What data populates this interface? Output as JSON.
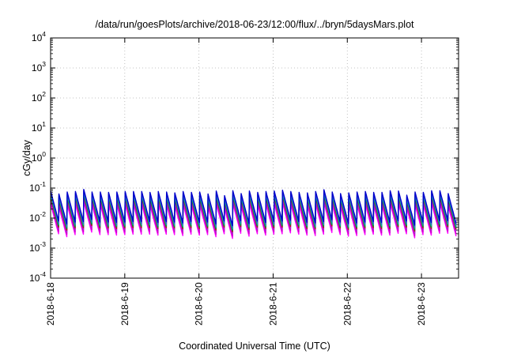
{
  "chart_data": {
    "type": "line",
    "title": "/data/run/goesPlots/archive/2018-06-23/12:00/flux/../bryn/5daysMars.plot",
    "xlabel": "Coordinated Universal Time (UTC)",
    "ylabel": "cGy/day",
    "y_scale": "log",
    "ylim": [
      0.0001,
      10000
    ],
    "y_ticks": [
      {
        "base": "10",
        "exp": "4"
      },
      {
        "base": "10",
        "exp": "3"
      },
      {
        "base": "10",
        "exp": "2"
      },
      {
        "base": "10",
        "exp": "1"
      },
      {
        "base": "10",
        "exp": "0"
      },
      {
        "base": "10",
        "exp": "-1"
      },
      {
        "base": "10",
        "exp": "-2"
      },
      {
        "base": "10",
        "exp": "-3"
      },
      {
        "base": "10",
        "exp": "-4"
      }
    ],
    "xlim": [
      "2018-06-18",
      "2018-06-23T12:00"
    ],
    "x_ticks": [
      "2018-6-18",
      "2018-6-19",
      "2018-6-20",
      "2018-6-21",
      "2018-6-22",
      "2018-6-23"
    ],
    "grid": true,
    "legend": "none",
    "pattern": {
      "period_hours": 2.68,
      "pulse_count": 49,
      "peak_cGy_per_day": 0.09,
      "decay_factor_per_cycle": 0.1
    },
    "series": [
      {
        "color": "#ff00ff",
        "values": [
          0.03,
          0.024,
          0.028,
          0.029,
          0.034,
          0.028,
          0.028,
          0.027,
          0.028,
          0.029,
          0.029,
          0.029,
          0.027,
          0.029,
          0.028,
          0.026,
          0.029,
          0.027,
          0.028,
          0.024,
          0.03,
          0.021,
          0.031,
          0.025,
          0.03,
          0.027,
          0.029,
          0.03,
          0.032,
          0.029,
          0.027,
          0.026,
          0.029,
          0.033,
          0.028,
          0.025,
          0.026,
          0.028,
          0.029,
          0.027,
          0.027,
          0.031,
          0.03,
          0.022,
          0.028,
          0.027,
          0.031,
          0.031,
          0.025
        ]
      },
      {
        "color": "#cc00cc",
        "values": [
          0.036,
          0.029,
          0.034,
          0.035,
          0.041,
          0.034,
          0.033,
          0.033,
          0.034,
          0.035,
          0.035,
          0.035,
          0.032,
          0.035,
          0.034,
          0.031,
          0.035,
          0.032,
          0.034,
          0.029,
          0.036,
          0.025,
          0.037,
          0.03,
          0.036,
          0.032,
          0.035,
          0.036,
          0.038,
          0.035,
          0.032,
          0.031,
          0.035,
          0.04,
          0.034,
          0.03,
          0.031,
          0.034,
          0.035,
          0.032,
          0.032,
          0.037,
          0.036,
          0.026,
          0.034,
          0.032,
          0.037,
          0.037,
          0.03
        ]
      },
      {
        "color": "#9933cc",
        "values": [
          0.044,
          0.035,
          0.041,
          0.042,
          0.05,
          0.041,
          0.041,
          0.04,
          0.041,
          0.042,
          0.042,
          0.042,
          0.04,
          0.042,
          0.041,
          0.038,
          0.042,
          0.04,
          0.041,
          0.035,
          0.044,
          0.031,
          0.045,
          0.037,
          0.044,
          0.04,
          0.042,
          0.044,
          0.047,
          0.042,
          0.04,
          0.038,
          0.042,
          0.048,
          0.041,
          0.037,
          0.038,
          0.041,
          0.042,
          0.04,
          0.04,
          0.045,
          0.044,
          0.032,
          0.041,
          0.04,
          0.045,
          0.045,
          0.037
        ]
      },
      {
        "color": "#cc0000",
        "values": [
          0.05,
          0.04,
          0.047,
          0.048,
          0.057,
          0.047,
          0.047,
          0.045,
          0.047,
          0.048,
          0.048,
          0.048,
          0.045,
          0.048,
          0.047,
          0.044,
          0.048,
          0.045,
          0.047,
          0.04,
          0.05,
          0.035,
          0.052,
          0.042,
          0.05,
          0.045,
          0.048,
          0.05,
          0.053,
          0.048,
          0.045,
          0.044,
          0.048,
          0.055,
          0.047,
          0.042,
          0.044,
          0.047,
          0.048,
          0.045,
          0.045,
          0.052,
          0.05,
          0.037,
          0.047,
          0.045,
          0.052,
          0.052,
          0.042
        ]
      },
      {
        "color": "#009933",
        "values": [
          0.055,
          0.044,
          0.051,
          0.053,
          0.062,
          0.051,
          0.051,
          0.05,
          0.051,
          0.053,
          0.053,
          0.053,
          0.049,
          0.053,
          0.051,
          0.048,
          0.053,
          0.049,
          0.051,
          0.044,
          0.055,
          0.038,
          0.057,
          0.046,
          0.055,
          0.049,
          0.053,
          0.055,
          0.059,
          0.053,
          0.049,
          0.048,
          0.053,
          0.06,
          0.051,
          0.046,
          0.048,
          0.051,
          0.053,
          0.049,
          0.049,
          0.057,
          0.055,
          0.04,
          0.051,
          0.049,
          0.057,
          0.057,
          0.046
        ]
      },
      {
        "color": "#00aaaa",
        "values": [
          0.062,
          0.05,
          0.058,
          0.06,
          0.07,
          0.058,
          0.058,
          0.056,
          0.058,
          0.06,
          0.06,
          0.06,
          0.056,
          0.06,
          0.058,
          0.054,
          0.06,
          0.056,
          0.058,
          0.05,
          0.062,
          0.043,
          0.064,
          0.052,
          0.062,
          0.056,
          0.06,
          0.062,
          0.066,
          0.06,
          0.056,
          0.054,
          0.06,
          0.068,
          0.058,
          0.052,
          0.054,
          0.058,
          0.06,
          0.056,
          0.056,
          0.064,
          0.062,
          0.046,
          0.058,
          0.056,
          0.064,
          0.064,
          0.052
        ]
      },
      {
        "color": "#3366cc",
        "values": [
          0.07,
          0.056,
          0.065,
          0.067,
          0.079,
          0.065,
          0.065,
          0.063,
          0.065,
          0.067,
          0.067,
          0.067,
          0.063,
          0.067,
          0.065,
          0.061,
          0.067,
          0.063,
          0.065,
          0.056,
          0.07,
          0.049,
          0.072,
          0.058,
          0.07,
          0.063,
          0.067,
          0.07,
          0.075,
          0.067,
          0.063,
          0.061,
          0.067,
          0.077,
          0.065,
          0.058,
          0.061,
          0.065,
          0.067,
          0.063,
          0.063,
          0.072,
          0.07,
          0.051,
          0.065,
          0.063,
          0.072,
          0.072,
          0.058
        ]
      },
      {
        "color": "#0000cc",
        "values": [
          0.08,
          0.064,
          0.074,
          0.077,
          0.09,
          0.074,
          0.074,
          0.072,
          0.074,
          0.077,
          0.077,
          0.077,
          0.072,
          0.077,
          0.074,
          0.069,
          0.077,
          0.072,
          0.074,
          0.064,
          0.08,
          0.056,
          0.082,
          0.066,
          0.08,
          0.072,
          0.077,
          0.08,
          0.085,
          0.077,
          0.072,
          0.069,
          0.077,
          0.088,
          0.074,
          0.066,
          0.069,
          0.074,
          0.077,
          0.072,
          0.072,
          0.082,
          0.08,
          0.058,
          0.074,
          0.072,
          0.082,
          0.082,
          0.066
        ]
      }
    ]
  }
}
